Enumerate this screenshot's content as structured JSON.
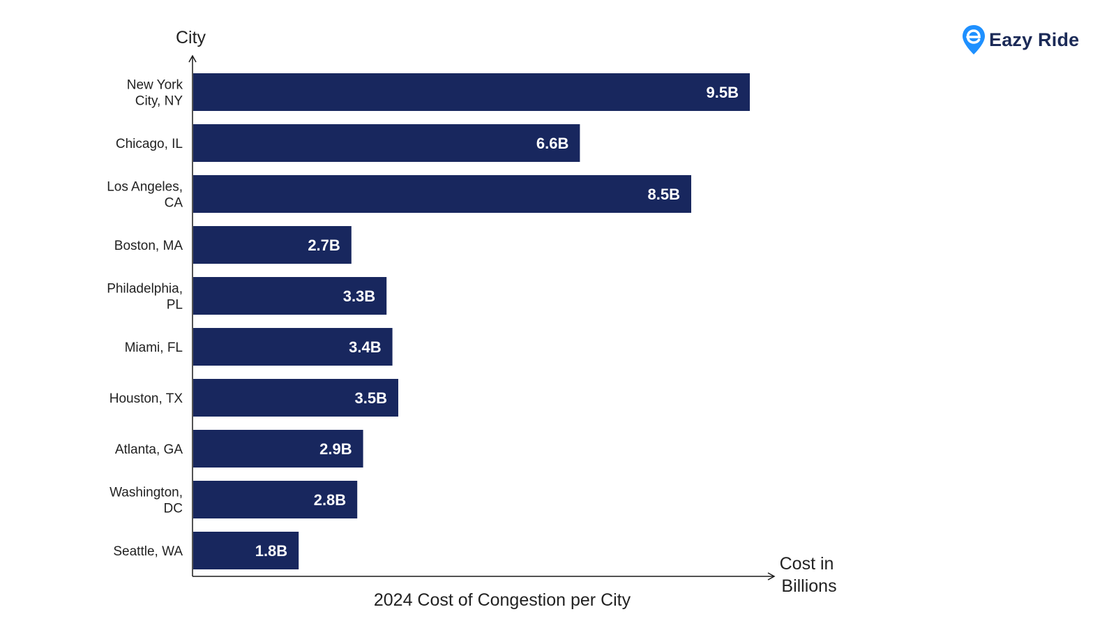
{
  "brand": {
    "name": "Eazy Ride",
    "pin_color": "#1e90ff",
    "text_color": "#1b2a57"
  },
  "chart_data": {
    "type": "bar",
    "orientation": "horizontal",
    "title": "2024 Cost of Congestion per City",
    "ylabel": "City",
    "xlabel": "Cost in Billions",
    "categories": [
      "New York City, NY",
      "Chicago, IL",
      "Los Angeles, CA",
      "Boston, MA",
      "Philadelphia, PL",
      "Miami, FL",
      "Houston, TX",
      "Atlanta, GA",
      "Washington, DC",
      "Seattle, WA"
    ],
    "category_lines": [
      [
        "New York",
        "City, NY"
      ],
      [
        "Chicago, IL"
      ],
      [
        "Los Angeles,",
        "CA"
      ],
      [
        "Boston, MA"
      ],
      [
        "Philadelphia,",
        "PL"
      ],
      [
        "Miami, FL"
      ],
      [
        "Houston, TX"
      ],
      [
        "Atlanta, GA"
      ],
      [
        "Washington,",
        "DC"
      ],
      [
        "Seattle, WA"
      ]
    ],
    "values": [
      9.5,
      6.6,
      8.5,
      2.7,
      3.3,
      3.4,
      3.5,
      2.9,
      2.8,
      1.8
    ],
    "value_labels": [
      "9.5B",
      "6.6B",
      "8.5B",
      "2.7B",
      "3.3B",
      "3.4B",
      "3.5B",
      "2.9B",
      "2.8B",
      "1.8B"
    ],
    "xlim": [
      0,
      10
    ],
    "bar_color": "#18275e",
    "grid": false,
    "legend": "none"
  }
}
